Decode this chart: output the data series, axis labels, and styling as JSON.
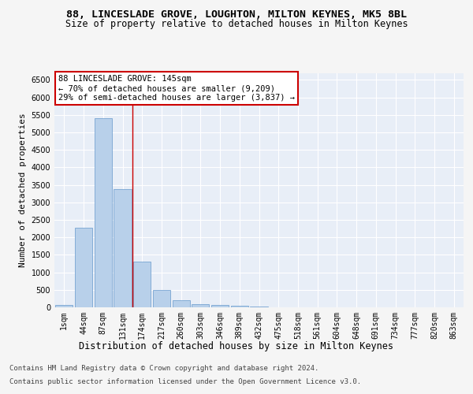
{
  "title_line1": "88, LINCESLADE GROVE, LOUGHTON, MILTON KEYNES, MK5 8BL",
  "title_line2": "Size of property relative to detached houses in Milton Keynes",
  "xlabel": "Distribution of detached houses by size in Milton Keynes",
  "ylabel": "Number of detached properties",
  "bin_labels": [
    "1sqm",
    "44sqm",
    "87sqm",
    "131sqm",
    "174sqm",
    "217sqm",
    "260sqm",
    "303sqm",
    "346sqm",
    "389sqm",
    "432sqm",
    "475sqm",
    "518sqm",
    "561sqm",
    "604sqm",
    "648sqm",
    "691sqm",
    "734sqm",
    "777sqm",
    "820sqm",
    "863sqm"
  ],
  "bar_values": [
    75,
    2280,
    5400,
    3380,
    1310,
    490,
    200,
    100,
    60,
    45,
    30,
    0,
    0,
    0,
    0,
    0,
    0,
    0,
    0,
    0,
    0
  ],
  "bar_color": "#b8d0ea",
  "bar_edgecolor": "#6699cc",
  "vline_x": 3.5,
  "vline_color": "#cc0000",
  "annotation_text": "88 LINCESLADE GROVE: 145sqm\n← 70% of detached houses are smaller (9,209)\n29% of semi-detached houses are larger (3,837) →",
  "annotation_box_color": "#ffffff",
  "annotation_box_edgecolor": "#cc0000",
  "ylim": [
    0,
    6700
  ],
  "yticks": [
    0,
    500,
    1000,
    1500,
    2000,
    2500,
    3000,
    3500,
    4000,
    4500,
    5000,
    5500,
    6000,
    6500
  ],
  "footer_line1": "Contains HM Land Registry data © Crown copyright and database right 2024.",
  "footer_line2": "Contains public sector information licensed under the Open Government Licence v3.0.",
  "bg_color": "#e8eef7",
  "grid_color": "#ffffff",
  "fig_bg_color": "#f5f5f5",
  "title_fontsize": 9.5,
  "subtitle_fontsize": 8.5,
  "xlabel_fontsize": 8.5,
  "ylabel_fontsize": 8,
  "tick_fontsize": 7,
  "annotation_fontsize": 7.5,
  "footer_fontsize": 6.5
}
